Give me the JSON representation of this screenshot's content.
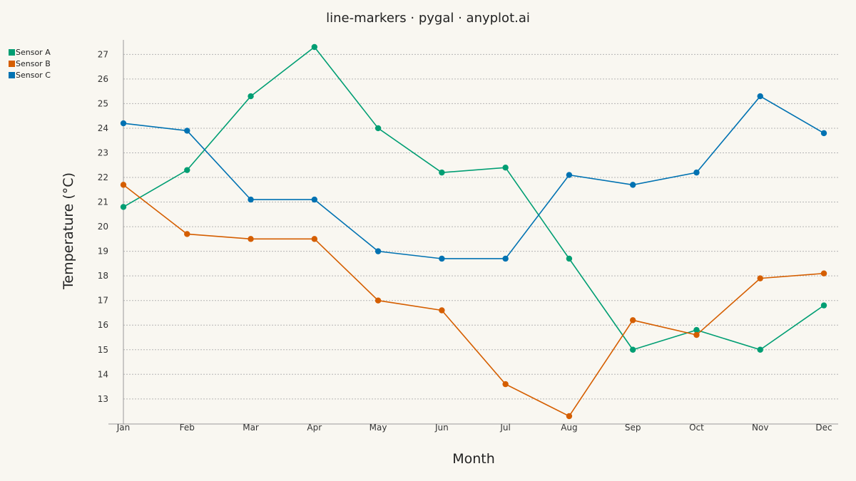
{
  "chart_data": {
    "type": "line",
    "title": "line-markers · pygal · anyplot.ai",
    "xlabel": "Month",
    "ylabel": "Temperature (°C)",
    "categories": [
      "Jan",
      "Feb",
      "Mar",
      "Apr",
      "May",
      "Jun",
      "Jul",
      "Aug",
      "Sep",
      "Oct",
      "Nov",
      "Dec"
    ],
    "ylim": [
      12.3,
      27.3
    ],
    "yticks": [
      13,
      14,
      15,
      16,
      17,
      18,
      19,
      20,
      21,
      22,
      23,
      24,
      25,
      26,
      27
    ],
    "grid": "horizontal",
    "legend_position": "top-left",
    "series": [
      {
        "name": "Sensor A",
        "color": "#009e73",
        "values": [
          20.8,
          22.3,
          25.3,
          27.3,
          24.0,
          22.2,
          22.4,
          18.7,
          15.0,
          15.8,
          15.0,
          16.8
        ]
      },
      {
        "name": "Sensor B",
        "color": "#d55e00",
        "values": [
          21.7,
          19.7,
          19.5,
          19.5,
          17.0,
          16.6,
          13.6,
          12.3,
          16.2,
          15.6,
          17.9,
          18.1
        ]
      },
      {
        "name": "Sensor C",
        "color": "#0072b2",
        "values": [
          24.2,
          23.9,
          21.1,
          21.1,
          19.0,
          18.7,
          18.7,
          22.1,
          21.7,
          22.2,
          25.3,
          23.8
        ]
      }
    ]
  }
}
